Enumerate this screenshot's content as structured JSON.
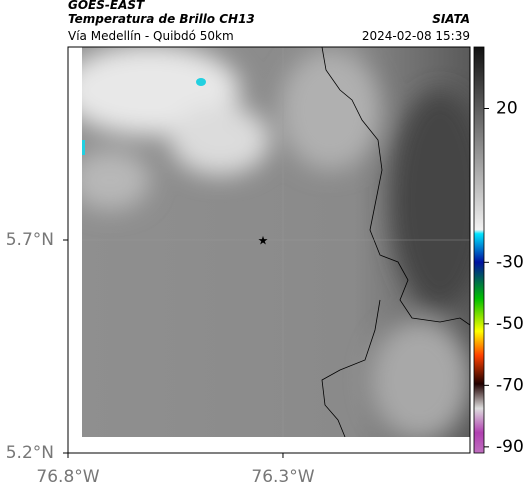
{
  "header": {
    "title": "GOES-EAST",
    "subtitle": "Temperatura de Brillo CH13",
    "route": "Vía Medellín - Quibdó 50km",
    "source": "SIATA",
    "timestamp": "2024-02-08 15:39"
  },
  "map": {
    "lonlim": [
      -76.8,
      -75.865
    ],
    "latlim": [
      5.2,
      6.153
    ],
    "lon_ticks": [
      {
        "value": -76.8,
        "label": "76.8°W"
      },
      {
        "value": -76.3,
        "label": "76.3°W"
      }
    ],
    "lat_ticks": [
      {
        "value": 5.7,
        "label": "5.7°N"
      },
      {
        "value": 5.2,
        "label": "5.2°N"
      }
    ]
  },
  "colorbar": {
    "lim": [
      40,
      -92
    ],
    "ticks": [
      20,
      -30,
      -50,
      -70,
      -90
    ]
  }
}
